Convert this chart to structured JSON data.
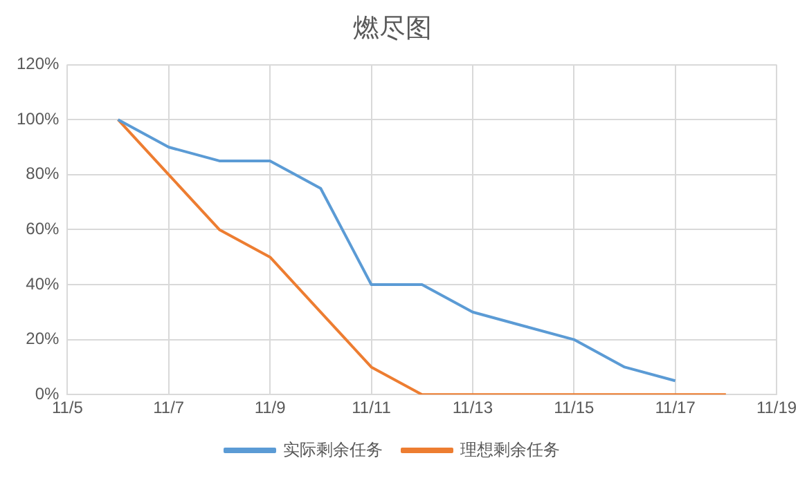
{
  "chart_data": {
    "type": "line",
    "title": "燃尽图",
    "x": [
      "--11-06",
      "--11-07",
      "--11-08",
      "--11-09",
      "--11-10",
      "--11-11",
      "--11-12",
      "--11-13",
      "--11-14",
      "--11-15",
      "--11-16",
      "--11-17",
      "--11-18"
    ],
    "series": [
      {
        "name": "实际剩余任务",
        "color": "#5b9bd5",
        "values": [
          100,
          90,
          85,
          85,
          75,
          40,
          40,
          30,
          25,
          20,
          10,
          5,
          null
        ]
      },
      {
        "name": "理想剩余任务",
        "color": "#ed7d31",
        "values": [
          100,
          80,
          60,
          50,
          30,
          10,
          0,
          0,
          0,
          0,
          0,
          0,
          0
        ]
      }
    ],
    "xlim": [
      "--11-05",
      "--11-19"
    ],
    "xticks": [
      {
        "value": "--11-05",
        "label": "11/5"
      },
      {
        "value": "--11-07",
        "label": "11/7"
      },
      {
        "value": "--11-09",
        "label": "11/9"
      },
      {
        "value": "--11-11",
        "label": "11/11"
      },
      {
        "value": "--11-13",
        "label": "11/13"
      },
      {
        "value": "--11-15",
        "label": "11/15"
      },
      {
        "value": "--11-17",
        "label": "11/17"
      },
      {
        "value": "--11-19",
        "label": "11/19"
      }
    ],
    "ylim": [
      0,
      120
    ],
    "yticks": [
      {
        "value": 0,
        "label": "0%"
      },
      {
        "value": 20,
        "label": "20%"
      },
      {
        "value": 40,
        "label": "40%"
      },
      {
        "value": 60,
        "label": "60%"
      },
      {
        "value": 80,
        "label": "80%"
      },
      {
        "value": 100,
        "label": "100%"
      },
      {
        "value": 120,
        "label": "120%"
      }
    ],
    "grid": true,
    "legend": "bottom",
    "marker": "none",
    "line_style": "solid"
  }
}
